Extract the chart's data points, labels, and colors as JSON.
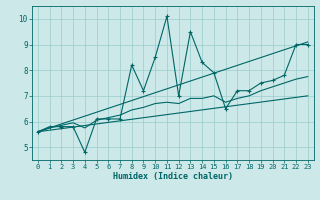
{
  "xlabel": "Humidex (Indice chaleur)",
  "xlim": [
    -0.5,
    23.5
  ],
  "ylim": [
    4.5,
    10.5
  ],
  "xticks": [
    0,
    1,
    2,
    3,
    4,
    5,
    6,
    7,
    8,
    9,
    10,
    11,
    12,
    13,
    14,
    15,
    16,
    17,
    18,
    19,
    20,
    21,
    22,
    23
  ],
  "yticks": [
    5,
    6,
    7,
    8,
    9,
    10
  ],
  "bg_color": "#cce8e8",
  "line_color": "#006666",
  "grid_color": "#99cccc",
  "series_main": {
    "x": [
      0,
      1,
      2,
      3,
      4,
      5,
      6,
      7,
      8,
      9,
      10,
      11,
      12,
      13,
      14,
      15,
      16,
      17,
      18,
      19,
      20,
      21,
      22,
      23
    ],
    "y": [
      5.6,
      5.8,
      5.8,
      5.8,
      4.8,
      6.1,
      6.1,
      6.1,
      8.2,
      7.2,
      8.5,
      10.1,
      7.0,
      9.5,
      8.3,
      7.9,
      6.5,
      7.2,
      7.2,
      7.5,
      7.6,
      7.8,
      9.0,
      9.0
    ]
  },
  "series_upper_trend": {
    "x": [
      0,
      23
    ],
    "y": [
      5.6,
      9.1
    ]
  },
  "series_lower_trend": {
    "x": [
      0,
      23
    ],
    "y": [
      5.6,
      7.0
    ]
  },
  "series_smooth": {
    "x": [
      0,
      1,
      2,
      3,
      4,
      5,
      6,
      7,
      8,
      9,
      10,
      11,
      12,
      13,
      14,
      15,
      16,
      17,
      18,
      19,
      20,
      21,
      22,
      23
    ],
    "y": [
      5.6,
      5.75,
      5.85,
      5.95,
      5.75,
      6.05,
      6.15,
      6.25,
      6.45,
      6.55,
      6.7,
      6.75,
      6.7,
      6.9,
      6.9,
      7.0,
      6.75,
      6.9,
      7.0,
      7.2,
      7.35,
      7.5,
      7.65,
      7.75
    ]
  }
}
